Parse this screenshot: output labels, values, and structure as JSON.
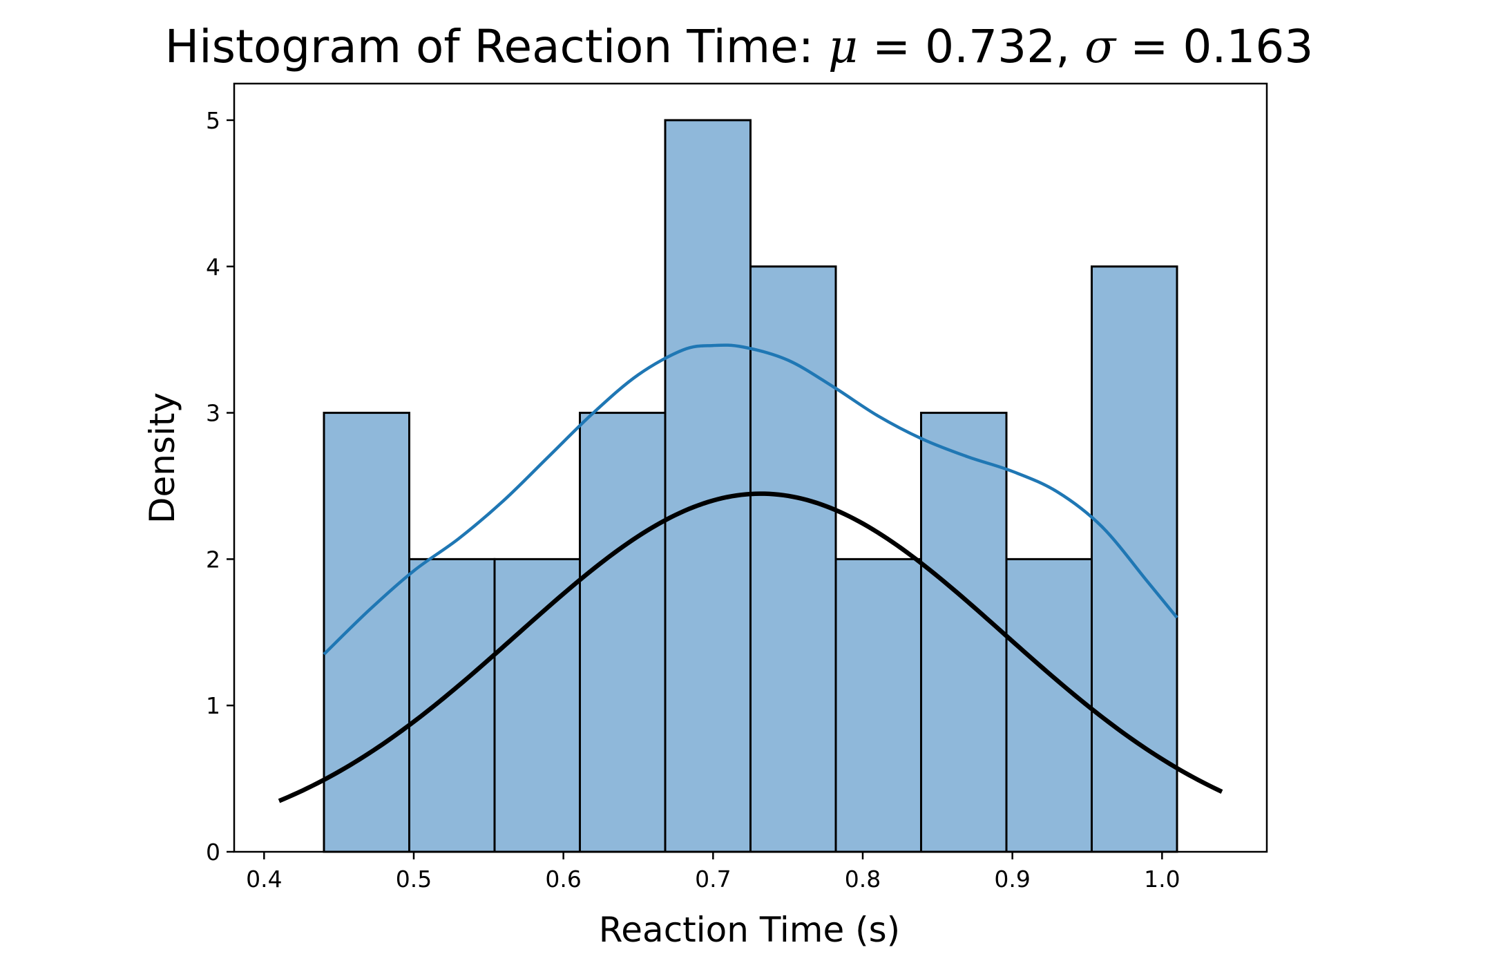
{
  "chart_data": {
    "type": "bar",
    "title": "Histogram of Reaction Time",
    "title_mu_symbol": "μ",
    "title_mu_value": "0.732",
    "title_sigma_symbol": "σ",
    "title_sigma_value": "0.163",
    "xlabel": "Reaction Time (s)",
    "ylabel": "Density",
    "xlim": [
      0.38,
      1.07
    ],
    "ylim": [
      0,
      5.25
    ],
    "xticks": [
      0.4,
      0.5,
      0.6,
      0.7,
      0.8,
      0.9,
      1.0
    ],
    "xtick_labels": [
      "0.4",
      "0.5",
      "0.6",
      "0.7",
      "0.8",
      "0.9",
      "1.0"
    ],
    "yticks": [
      0,
      1,
      2,
      3,
      4,
      5
    ],
    "ytick_labels": [
      "0",
      "1",
      "2",
      "3",
      "4",
      "5"
    ],
    "grid": false,
    "bins": {
      "edges": [
        0.44,
        0.497,
        0.554,
        0.611,
        0.668,
        0.725,
        0.782,
        0.839,
        0.896,
        0.953,
        1.01
      ],
      "values": [
        3,
        2,
        2,
        3,
        5,
        4,
        2,
        3,
        2,
        4
      ],
      "color": "#8fb8da"
    },
    "series": [
      {
        "type": "line",
        "role": "kde",
        "color": "#1f77b4",
        "x": [
          0.44,
          0.47,
          0.5,
          0.53,
          0.56,
          0.59,
          0.62,
          0.65,
          0.68,
          0.7,
          0.72,
          0.75,
          0.78,
          0.81,
          0.84,
          0.87,
          0.9,
          0.93,
          0.96,
          0.99,
          1.01
        ],
        "y": [
          1.35,
          1.65,
          1.92,
          2.14,
          2.4,
          2.7,
          3.0,
          3.26,
          3.43,
          3.46,
          3.45,
          3.36,
          3.18,
          2.98,
          2.82,
          2.7,
          2.6,
          2.46,
          2.22,
          1.85,
          1.6
        ]
      },
      {
        "type": "line",
        "role": "normal-fit",
        "color": "#000000",
        "mean": 0.732,
        "std": 0.163,
        "x_range": [
          0.41,
          1.04
        ]
      }
    ]
  }
}
